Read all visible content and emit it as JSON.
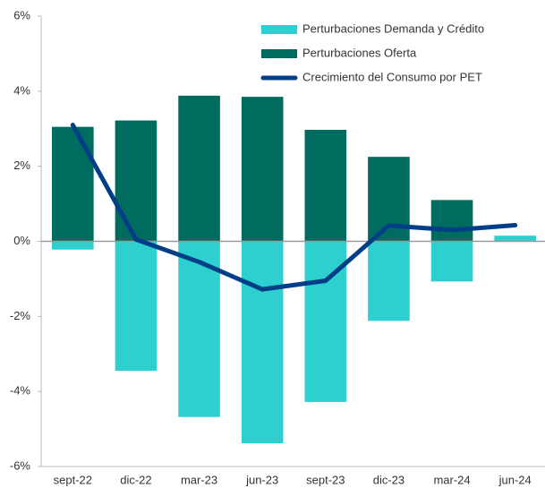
{
  "chart_data": {
    "type": "bar-line",
    "categories": [
      "sept-22",
      "dic-22",
      "mar-23",
      "jun-23",
      "sept-23",
      "dic-23",
      "mar-24",
      "jun-24"
    ],
    "series": [
      {
        "name": "Perturbaciones Demanda y Crédito",
        "color": "#2ecfcf",
        "kind": "bar",
        "values": [
          -0.22,
          -3.45,
          -4.68,
          -5.38,
          -4.28,
          -2.12,
          -1.07,
          0.15
        ]
      },
      {
        "name": "Perturbaciones Oferta",
        "color": "#006b5f",
        "kind": "bar",
        "values": [
          3.05,
          3.22,
          3.88,
          3.85,
          2.97,
          2.25,
          1.1,
          0
        ]
      },
      {
        "name": "Crecimiento del Consumo por PET",
        "color": "#003f87",
        "kind": "line",
        "values": [
          3.1,
          0.05,
          -0.55,
          -1.28,
          -1.05,
          0.42,
          0.3,
          0.43
        ]
      }
    ],
    "ylim": [
      -6,
      6
    ],
    "yticks": [
      {
        "value": -6,
        "label": "-6%"
      },
      {
        "value": -4,
        "label": "-4%"
      },
      {
        "value": -2,
        "label": "-2%"
      },
      {
        "value": 0,
        "label": "0%"
      },
      {
        "value": 2,
        "label": "2%"
      },
      {
        "value": 4,
        "label": "4%"
      },
      {
        "value": 6,
        "label": "6%"
      }
    ],
    "legend": "top-right"
  }
}
